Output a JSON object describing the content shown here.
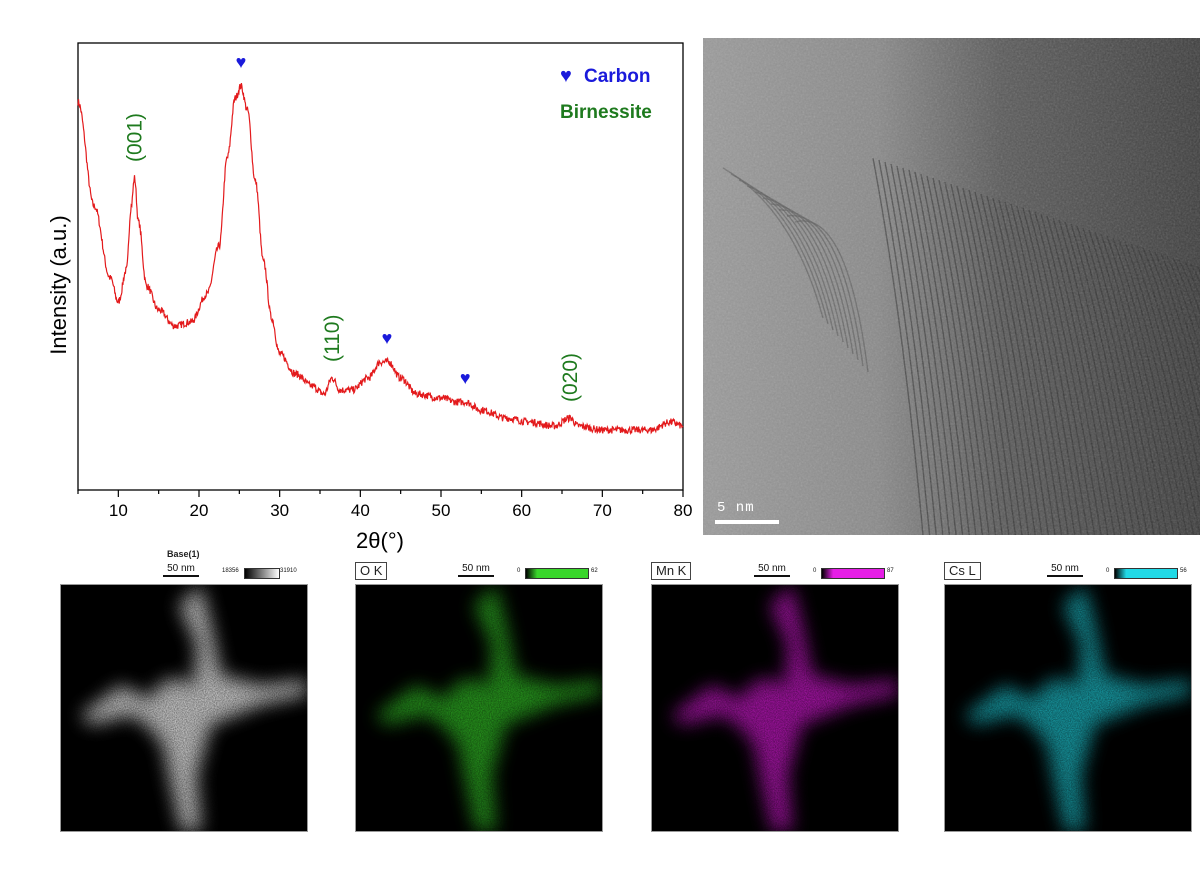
{
  "chart_data": {
    "type": "line",
    "xlabel": "2θ(°)",
    "ylabel": "Intensity (a.u.)",
    "xlim": [
      5,
      80
    ],
    "x_ticks": [
      "10",
      "20",
      "30",
      "40",
      "50",
      "60",
      "70",
      "80"
    ],
    "series_color": "#e31a1c",
    "series": [
      {
        "values": [
          [
            5,
            0.92
          ],
          [
            7,
            0.66
          ],
          [
            9,
            0.48
          ],
          [
            10,
            0.42
          ],
          [
            11,
            0.5
          ],
          [
            11.6,
            0.66
          ],
          [
            12,
            0.73
          ],
          [
            12.5,
            0.62
          ],
          [
            13.5,
            0.46
          ],
          [
            15,
            0.4
          ],
          [
            17,
            0.36
          ],
          [
            19,
            0.37
          ],
          [
            21,
            0.44
          ],
          [
            22.5,
            0.56
          ],
          [
            23.5,
            0.78
          ],
          [
            24.5,
            0.93
          ],
          [
            25.2,
            0.96
          ],
          [
            26,
            0.9
          ],
          [
            27,
            0.72
          ],
          [
            28,
            0.52
          ],
          [
            29,
            0.38
          ],
          [
            30,
            0.29
          ],
          [
            32,
            0.24
          ],
          [
            34,
            0.21
          ],
          [
            35.5,
            0.19
          ],
          [
            36.5,
            0.23
          ],
          [
            37.5,
            0.2
          ],
          [
            39,
            0.2
          ],
          [
            41,
            0.23
          ],
          [
            42.5,
            0.27
          ],
          [
            43.5,
            0.27
          ],
          [
            45,
            0.23
          ],
          [
            47,
            0.19
          ],
          [
            50,
            0.18
          ],
          [
            52,
            0.17
          ],
          [
            53,
            0.17
          ],
          [
            55,
            0.15
          ],
          [
            58,
            0.13
          ],
          [
            61,
            0.12
          ],
          [
            64,
            0.11
          ],
          [
            66,
            0.13
          ],
          [
            67,
            0.11
          ],
          [
            70,
            0.1
          ],
          [
            73,
            0.1
          ],
          [
            76,
            0.1
          ],
          [
            78.5,
            0.12
          ],
          [
            80,
            0.11
          ]
        ]
      }
    ],
    "annotations": [
      {
        "text": "(001)",
        "x": 12,
        "color": "#1e7a1e"
      },
      {
        "text": "(110)",
        "x": 36.5,
        "color": "#1e7a1e"
      },
      {
        "text": "(020)",
        "x": 66,
        "color": "#1e7a1e"
      }
    ],
    "markers": [
      {
        "symbol": "♥",
        "x": 25.2,
        "color": "#1a1adb"
      },
      {
        "symbol": "♥",
        "x": 43.3,
        "color": "#1a1adb"
      },
      {
        "symbol": "♥",
        "x": 53,
        "color": "#1a1adb"
      }
    ],
    "legend": [
      {
        "symbol": "♥",
        "label": "Carbon",
        "color": "#1a1adb"
      },
      {
        "symbol": "",
        "label": "Birnessite",
        "color": "#1e7a1e"
      }
    ],
    "legend_position": "top-right"
  },
  "tem": {
    "scale_label": "5 nm"
  },
  "maps": [
    {
      "title": "Base(1)",
      "scale": "50 nm",
      "cmin": "18356",
      "cmax": "31910",
      "color": "#ffffff"
    },
    {
      "title": "O K",
      "scale": "50 nm",
      "cmin": "0",
      "cmax": "62",
      "color": "#39d62b"
    },
    {
      "title": "Mn K",
      "scale": "50 nm",
      "cmin": "0",
      "cmax": "87",
      "color": "#e61ee6"
    },
    {
      "title": "Cs L",
      "scale": "50 nm",
      "cmin": "0",
      "cmax": "56",
      "color": "#21d9e6"
    }
  ]
}
